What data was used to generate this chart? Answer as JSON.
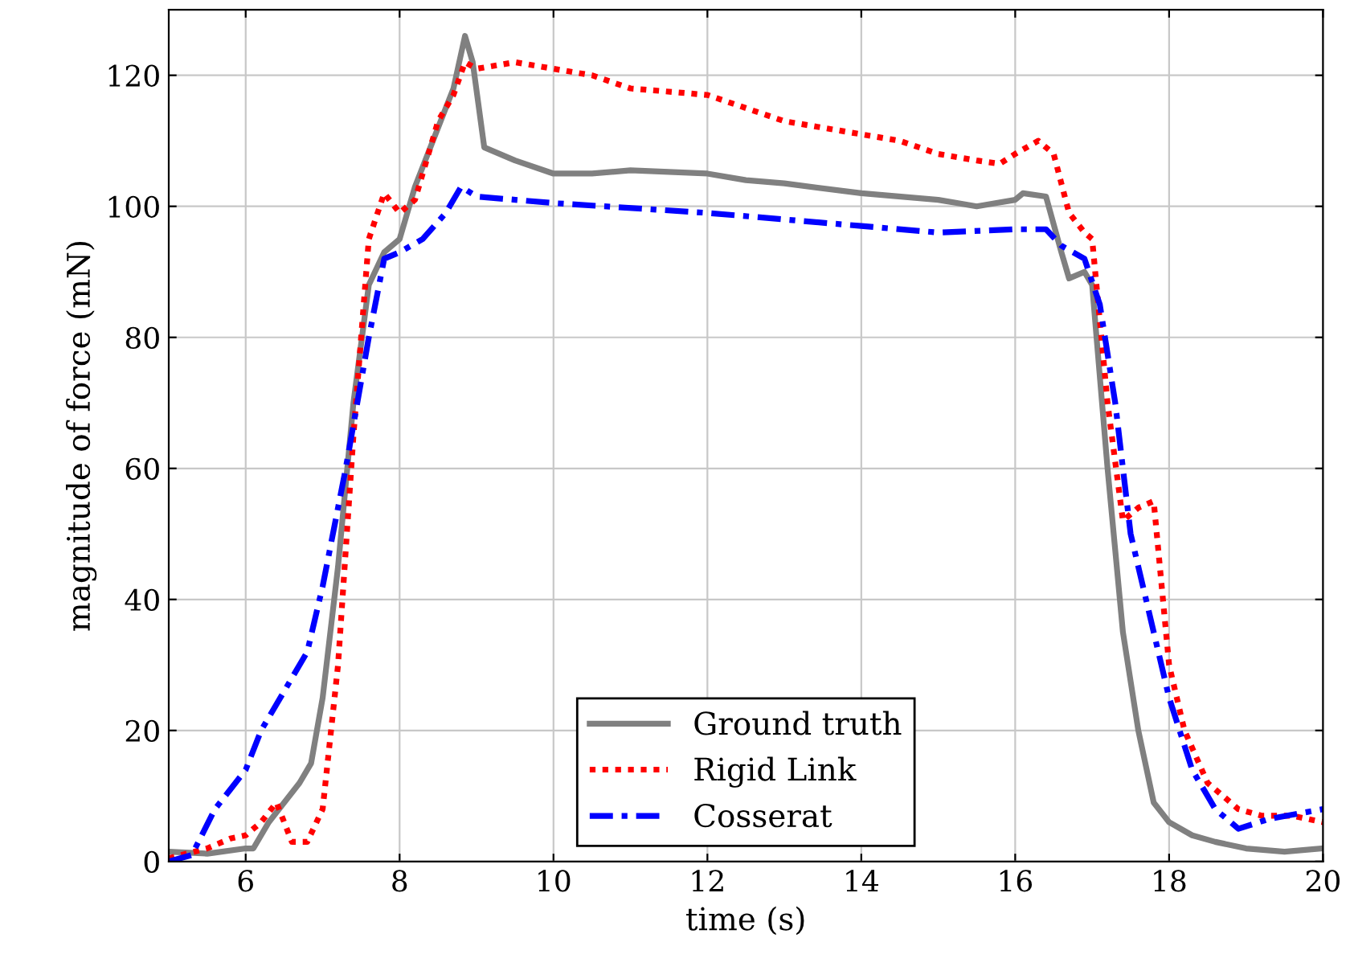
{
  "chart_data": {
    "type": "line",
    "xlabel": "time (s)",
    "ylabel": "magnitude of force (mN)",
    "xlim": [
      5,
      20
    ],
    "ylim": [
      0,
      130
    ],
    "xticks": [
      6,
      8,
      10,
      12,
      14,
      16,
      18,
      20
    ],
    "yticks": [
      0,
      20,
      40,
      60,
      80,
      100,
      120
    ],
    "grid": true,
    "legend": "bottom",
    "series": [
      {
        "name": "Ground truth",
        "color": "#808080",
        "line_style": "solid",
        "x": [
          5,
          5.5,
          6,
          6.1,
          6.3,
          6.5,
          6.7,
          6.85,
          7.0,
          7.2,
          7.4,
          7.6,
          7.8,
          8.0,
          8.2,
          8.5,
          8.7,
          8.85,
          8.95,
          9.1,
          9.5,
          10,
          10.5,
          11,
          12,
          12.5,
          13,
          14,
          15,
          15.5,
          16,
          16.1,
          16.4,
          16.6,
          16.7,
          16.9,
          17.0,
          17.2,
          17.4,
          17.6,
          17.8,
          18,
          18.3,
          18.6,
          19,
          19.5,
          20
        ],
        "values": [
          1.5,
          1.2,
          2,
          2,
          6,
          9,
          12,
          15,
          25,
          45,
          70,
          88,
          93,
          95,
          103,
          112,
          118,
          126,
          122,
          109,
          107,
          105,
          105,
          105.5,
          105,
          104,
          103.5,
          102,
          101,
          100,
          101,
          102,
          101.5,
          93,
          89,
          90,
          88,
          60,
          35,
          20,
          9,
          6,
          4,
          3,
          2,
          1.5,
          2
        ]
      },
      {
        "name": "Rigid Link",
        "color": "#ff0000",
        "line_style": "dotted",
        "x": [
          5,
          5.5,
          5.8,
          6,
          6.2,
          6.4,
          6.6,
          6.8,
          7.0,
          7.2,
          7.4,
          7.6,
          7.8,
          8.0,
          8.2,
          8.5,
          8.7,
          8.85,
          9.0,
          9.5,
          10,
          10.5,
          11,
          12,
          13,
          14,
          14.5,
          15,
          15.5,
          15.8,
          16,
          16.3,
          16.5,
          16.7,
          16.9,
          17.0,
          17.2,
          17.4,
          17.6,
          17.8,
          18.0,
          18.2,
          18.5,
          18.9,
          19.2,
          19.6,
          20
        ],
        "values": [
          0.5,
          2,
          3.5,
          4,
          6,
          9,
          3,
          3,
          8,
          30,
          65,
          95,
          102,
          99,
          101,
          113,
          117,
          122,
          121,
          122,
          121,
          120,
          118,
          117,
          113,
          111,
          110,
          108,
          107,
          106.5,
          108,
          110,
          108,
          99,
          96,
          95,
          70,
          52,
          54,
          55,
          30,
          20,
          12,
          8,
          7,
          7,
          6
        ]
      },
      {
        "name": "Cosserat",
        "color": "#0000ff",
        "line_style": "dashdot",
        "x": [
          5,
          5.3,
          5.6,
          5.8,
          6.0,
          6.2,
          6.5,
          6.8,
          7.0,
          7.3,
          7.6,
          7.8,
          8.0,
          8.3,
          8.6,
          8.8,
          9.0,
          10,
          12,
          14,
          15,
          16,
          16.4,
          16.6,
          16.9,
          17.1,
          17.3,
          17.5,
          17.7,
          18.0,
          18.3,
          18.6,
          18.9,
          19.3,
          20
        ],
        "values": [
          0,
          1,
          8,
          11,
          14,
          20,
          26,
          32,
          42,
          60,
          80,
          92,
          93,
          95,
          99,
          103,
          101.5,
          100.5,
          99,
          97,
          96,
          96.5,
          96.5,
          94,
          92,
          85,
          70,
          50,
          40,
          25,
          14,
          8,
          5,
          6.5,
          8
        ]
      }
    ]
  }
}
